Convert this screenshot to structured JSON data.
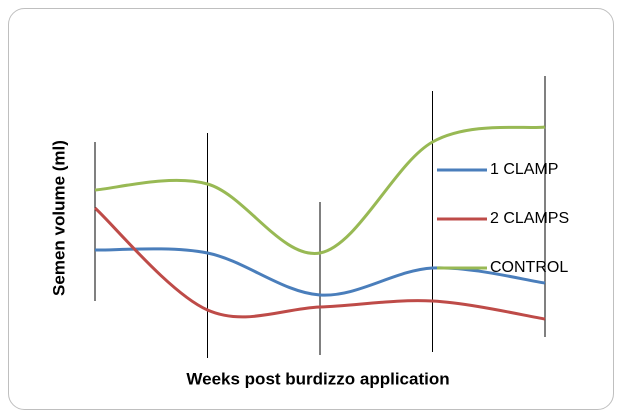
{
  "chart_data": {
    "type": "line",
    "x_label": "Weeks post burdizzo application",
    "y_label": "Semen volume (ml)",
    "categories": [
      null,
      null,
      null,
      null,
      null
    ],
    "ylim": [
      0,
      10
    ],
    "smooth": true,
    "legend": "right",
    "series": [
      {
        "name": "1 CLAMP",
        "color": "#4a7ebb",
        "values": [
          4.0,
          3.9,
          2.5,
          3.4,
          2.9
        ]
      },
      {
        "name": "2 CLAMPS",
        "color": "#be4b48",
        "values": [
          5.4,
          2.0,
          2.1,
          2.3,
          1.7
        ]
      },
      {
        "name": "CONTROL",
        "color": "#98b954",
        "values": [
          6.0,
          6.2,
          3.9,
          7.6,
          8.1
        ]
      }
    ],
    "high_low_lines": {
      "color": "#000000",
      "high": [
        7.6,
        7.9,
        5.6,
        9.3,
        9.8
      ],
      "low": [
        2.3,
        0.4,
        0.5,
        0.6,
        1.1
      ]
    }
  }
}
